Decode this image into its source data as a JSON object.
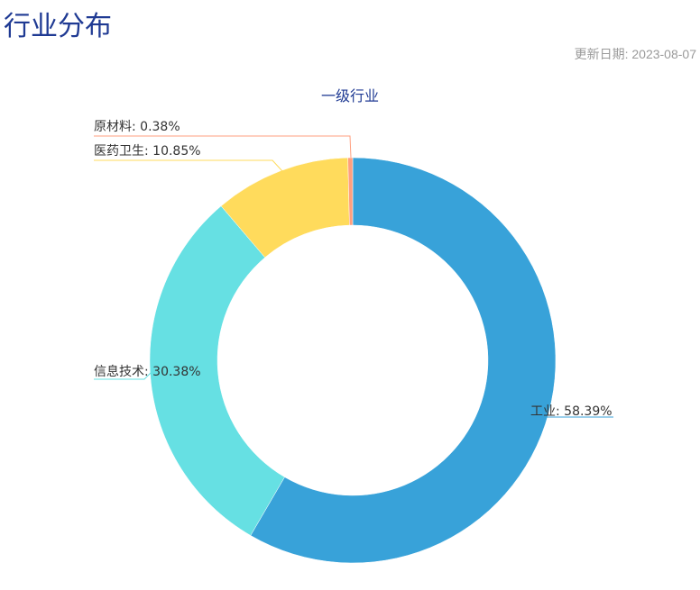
{
  "header": {
    "title": "行业分布",
    "date_label": "更新日期:",
    "date": "2023-08-07"
  },
  "chart_data": {
    "type": "pie",
    "variant": "donut",
    "title": "一级行业",
    "slices": [
      {
        "name": "工业",
        "value": 58.39,
        "label": "工业: 58.39%",
        "color": "#38a2d9"
      },
      {
        "name": "信息技术",
        "value": 30.38,
        "label": "信息技术: 30.38%",
        "color": "#66e0e3"
      },
      {
        "name": "医药卫生",
        "value": 10.85,
        "label": "医药卫生: 10.85%",
        "color": "#ffdb5c"
      },
      {
        "name": "原材料",
        "value": 0.38,
        "label": "原材料: 0.38%",
        "color": "#ff9f7f"
      }
    ]
  }
}
